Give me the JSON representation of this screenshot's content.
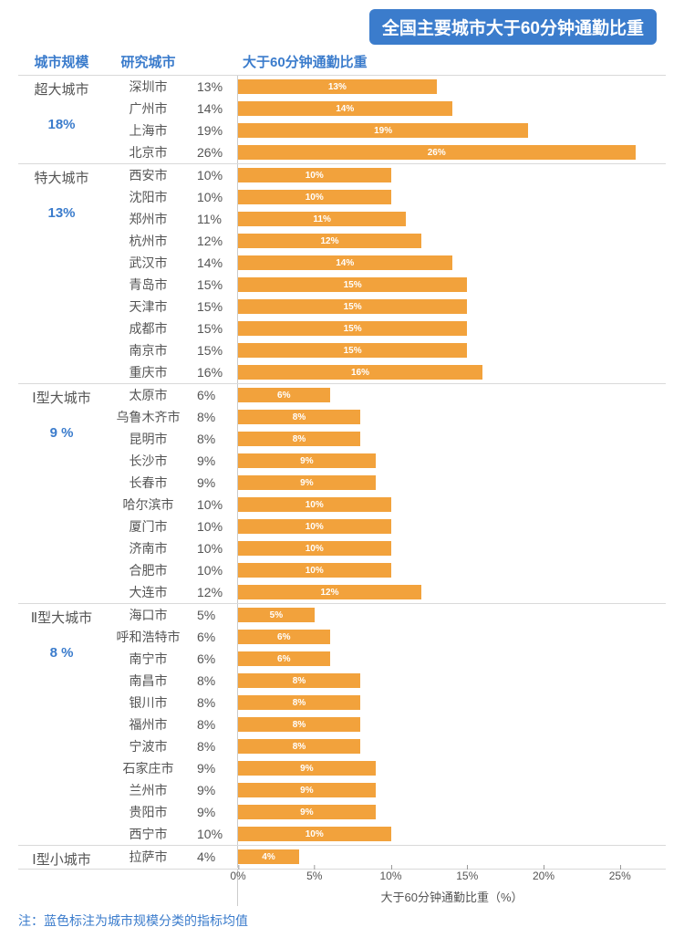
{
  "title": "全国主要城市大于60分钟通勤比重",
  "title_bg": "#3b7ccc",
  "title_color": "#ffffff",
  "headers": {
    "scale": "城市规模",
    "city": "研究城市",
    "metric": "大于60分钟通勤比重"
  },
  "header_color": "#3b7ccc",
  "bar_color": "#f2a23c",
  "bar_label_color": "#ffffff",
  "text_color": "#555555",
  "avg_color": "#3b7ccc",
  "border_color": "#d9d9d9",
  "axis_label": "大于60分钟通勤比重（%）",
  "x_max_pct": 28,
  "ticks": [
    {
      "label": "0%",
      "val": 0
    },
    {
      "label": "5%",
      "val": 5
    },
    {
      "label": "10%",
      "val": 10
    },
    {
      "label": "15%",
      "val": 15
    },
    {
      "label": "20%",
      "val": 20
    },
    {
      "label": "25%",
      "val": 25
    }
  ],
  "footnote": "注：蓝色标注为城市规模分类的指标均值",
  "groups": [
    {
      "scale": "超大城市",
      "avg": "18%",
      "cities": [
        {
          "name": "深圳市",
          "pct": 13
        },
        {
          "name": "广州市",
          "pct": 14
        },
        {
          "name": "上海市",
          "pct": 19
        },
        {
          "name": "北京市",
          "pct": 26
        }
      ]
    },
    {
      "scale": "特大城市",
      "avg": "13%",
      "cities": [
        {
          "name": "西安市",
          "pct": 10
        },
        {
          "name": "沈阳市",
          "pct": 10
        },
        {
          "name": "郑州市",
          "pct": 11
        },
        {
          "name": "杭州市",
          "pct": 12
        },
        {
          "name": "武汉市",
          "pct": 14
        },
        {
          "name": "青岛市",
          "pct": 15
        },
        {
          "name": "天津市",
          "pct": 15
        },
        {
          "name": "成都市",
          "pct": 15
        },
        {
          "name": "南京市",
          "pct": 15
        },
        {
          "name": "重庆市",
          "pct": 16
        }
      ]
    },
    {
      "scale": "Ⅰ型大城市",
      "avg": "9 %",
      "cities": [
        {
          "name": "太原市",
          "pct": 6
        },
        {
          "name": "乌鲁木齐市",
          "pct": 8
        },
        {
          "name": "昆明市",
          "pct": 8
        },
        {
          "name": "长沙市",
          "pct": 9
        },
        {
          "name": "长春市",
          "pct": 9
        },
        {
          "name": "哈尔滨市",
          "pct": 10
        },
        {
          "name": "厦门市",
          "pct": 10
        },
        {
          "name": "济南市",
          "pct": 10
        },
        {
          "name": "合肥市",
          "pct": 10
        },
        {
          "name": "大连市",
          "pct": 12
        }
      ]
    },
    {
      "scale": "Ⅱ型大城市",
      "avg": "8 %",
      "cities": [
        {
          "name": "海口市",
          "pct": 5
        },
        {
          "name": "呼和浩特市",
          "pct": 6
        },
        {
          "name": "南宁市",
          "pct": 6
        },
        {
          "name": "南昌市",
          "pct": 8
        },
        {
          "name": "银川市",
          "pct": 8
        },
        {
          "name": "福州市",
          "pct": 8
        },
        {
          "name": "宁波市",
          "pct": 8
        },
        {
          "name": "石家庄市",
          "pct": 9
        },
        {
          "name": "兰州市",
          "pct": 9
        },
        {
          "name": "贵阳市",
          "pct": 9
        },
        {
          "name": "西宁市",
          "pct": 10
        }
      ]
    },
    {
      "scale": "Ⅰ型小城市",
      "avg": "",
      "cities": [
        {
          "name": "拉萨市",
          "pct": 4
        }
      ]
    }
  ]
}
